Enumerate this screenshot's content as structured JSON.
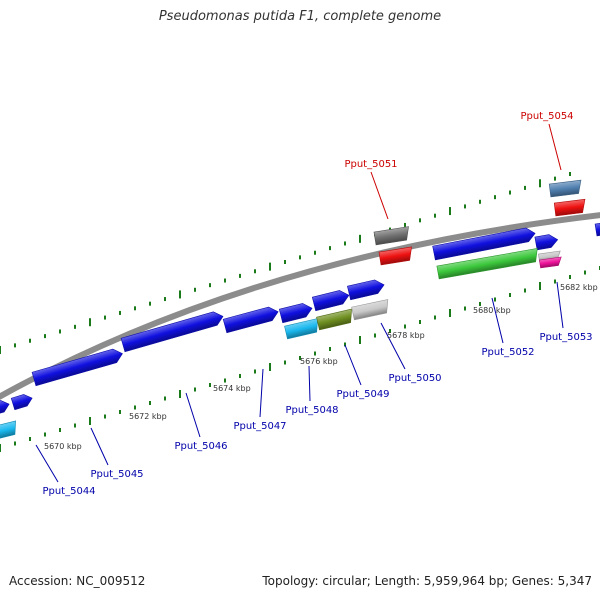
{
  "title": "Pseudomonas putida F1, complete genome",
  "footer": {
    "accession": "Accession: NC_009512",
    "summary": "Topology: circular; Length: 5,959,964 bp; Genes: 5,347"
  },
  "ticks": [
    {
      "label": "5670 kbp"
    },
    {
      "label": "5672 kbp"
    },
    {
      "label": "5674 kbp"
    },
    {
      "label": "5676 kbp"
    },
    {
      "label": "5678 kbp"
    },
    {
      "label": "5680 kbp"
    },
    {
      "label": "5682 kbp"
    }
  ],
  "gene_labels": [
    {
      "text": "Pput_5044",
      "color": "#0000aa"
    },
    {
      "text": "Pput_5045",
      "color": "#0000aa"
    },
    {
      "text": "Pput_5046",
      "color": "#0000aa"
    },
    {
      "text": "Pput_5047",
      "color": "#0000aa"
    },
    {
      "text": "Pput_5048",
      "color": "#0000aa"
    },
    {
      "text": "Pput_5049",
      "color": "#0000aa"
    },
    {
      "text": "Pput_5050",
      "color": "#0000aa"
    },
    {
      "text": "Pput_5052",
      "color": "#0000aa"
    },
    {
      "text": "Pput_5053",
      "color": "#0000aa"
    },
    {
      "text": "Pput_5051",
      "color": "#cc0000"
    },
    {
      "text": "Pput_5054",
      "color": "#cc0000"
    }
  ],
  "colors": {
    "backbone": "#8c8c8c",
    "cds": "#1010e0",
    "cds_light": "#1ab8ee",
    "olive": "#6f8f20",
    "gray": "#c8c8c8",
    "green": "#3cc83c",
    "red": "#ee1111",
    "dark_gray": "#707070",
    "steel": "#5080b0",
    "pink": "#ee1199",
    "tick": "#1a7a1a"
  }
}
